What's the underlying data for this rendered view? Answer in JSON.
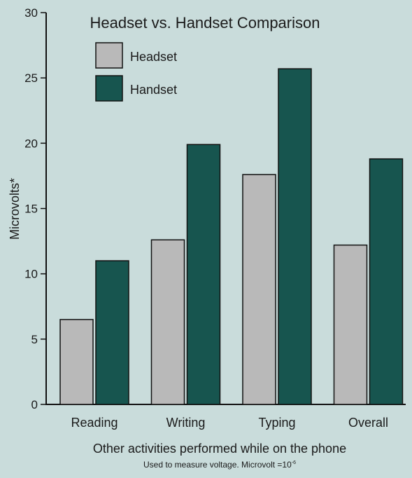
{
  "chart_data": {
    "type": "bar",
    "title": "Headset vs. Handset Comparison",
    "xlabel": "Other activities performed while on the phone",
    "ylabel": "Microvolts*",
    "footnote": "Used to measure voltage. Microvolt =10",
    "footnote_exponent": "-6",
    "categories": [
      "Reading",
      "Writing",
      "Typing",
      "Overall"
    ],
    "series": [
      {
        "name": "Headset",
        "color": "#b9b9b9",
        "values": [
          6.5,
          12.6,
          17.6,
          12.2
        ]
      },
      {
        "name": "Handset",
        "color": "#17554f",
        "values": [
          11.0,
          19.9,
          25.7,
          18.8
        ]
      }
    ],
    "ylim": [
      0,
      30
    ],
    "yticks": [
      0,
      5,
      10,
      15,
      20,
      25,
      30
    ],
    "grid": false,
    "legend_position": "top-left"
  }
}
